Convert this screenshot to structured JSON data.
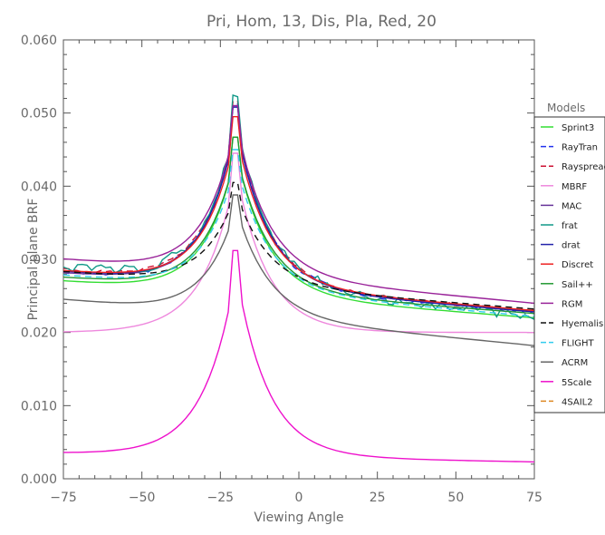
{
  "chart_data": {
    "type": "line",
    "title": "Pri, Hom, 13, Dis, Pla, Red, 20",
    "xlabel": "Viewing Angle",
    "ylabel": "Principal plane BRF",
    "xlim": [
      -75,
      75
    ],
    "ylim": [
      0.0,
      0.06
    ],
    "xticks": [
      "−75",
      "−50",
      "−25",
      "0",
      "25",
      "50",
      "75"
    ],
    "yticks": [
      "0.000",
      "0.010",
      "0.020",
      "0.030",
      "0.040",
      "0.050",
      "0.060"
    ],
    "legend_title": "Models",
    "legend_placement": "right, outside plot",
    "grid": false,
    "hotspot_angle": -20,
    "series": [
      {
        "name": "Sprint3",
        "color": "#33dd33",
        "dash": "solid",
        "left": 0.027,
        "right": 0.022,
        "peak": 0.0467,
        "noise": 0
      },
      {
        "name": "RayTran",
        "color": "#2233ee",
        "dash": "dashed",
        "left": 0.0282,
        "right": 0.0228,
        "peak": 0.051,
        "noise": 0.0003
      },
      {
        "name": "Rayspread",
        "color": "#cc1133",
        "dash": "dashed",
        "left": 0.0285,
        "right": 0.0229,
        "peak": 0.0515,
        "noise": 0.0002
      },
      {
        "name": "MBRF",
        "color": "#ee88dd",
        "dash": "solid",
        "left": 0.02,
        "right": 0.02,
        "peak": 0.0445,
        "noise": 0
      },
      {
        "name": "MAC",
        "color": "#663399",
        "dash": "solid",
        "left": 0.0281,
        "right": 0.0229,
        "peak": 0.051,
        "noise": 0
      },
      {
        "name": "frat",
        "color": "#119988",
        "dash": "solid",
        "left": 0.029,
        "right": 0.0222,
        "peak": 0.052,
        "noise": 0.0007
      },
      {
        "name": "drat",
        "color": "#2222aa",
        "dash": "solid",
        "left": 0.0283,
        "right": 0.0228,
        "peak": 0.0508,
        "noise": 0
      },
      {
        "name": "Discret",
        "color": "#ee2222",
        "dash": "solid",
        "left": 0.0284,
        "right": 0.023,
        "peak": 0.0495,
        "noise": 0
      },
      {
        "name": "Sail++",
        "color": "#229933",
        "dash": "solid",
        "left": 0.0275,
        "right": 0.0226,
        "peak": 0.0467,
        "noise": 0
      },
      {
        "name": "RGM",
        "color": "#992299",
        "dash": "solid",
        "left": 0.03,
        "right": 0.024,
        "peak": 0.051,
        "noise": 0
      },
      {
        "name": "Hyemalis",
        "color": "#111111",
        "dash": "dashed",
        "left": 0.0283,
        "right": 0.0232,
        "peak": 0.0405,
        "noise": 0
      },
      {
        "name": "FLIGHT",
        "color": "#33ccee",
        "dash": "dashed",
        "left": 0.0278,
        "right": 0.0222,
        "peak": 0.045,
        "noise": 0
      },
      {
        "name": "ACRM",
        "color": "#666666",
        "dash": "solid",
        "left": 0.0245,
        "right": 0.0182,
        "peak": 0.0388,
        "noise": 0
      },
      {
        "name": "5Scale",
        "color": "#ee11cc",
        "dash": "solid",
        "left": 0.0035,
        "right": 0.0023,
        "peak": 0.0312,
        "noise": 0
      },
      {
        "name": "4SAIL2",
        "color": "#dd8822",
        "dash": "dashed",
        "left": null,
        "right": null,
        "peak": null,
        "noise": 0
      }
    ]
  }
}
